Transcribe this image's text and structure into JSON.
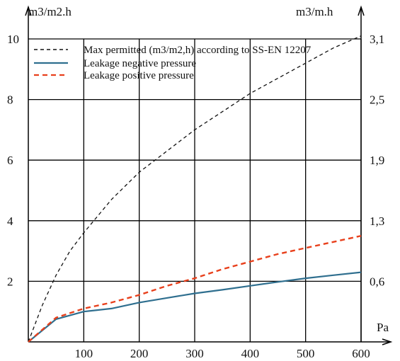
{
  "chart_data": {
    "type": "line",
    "left_axis_label": "m3/m2.h",
    "right_axis_label": "m3/m.h",
    "xlabel": "Pa",
    "x_ticks": [
      100,
      200,
      300,
      400,
      500,
      600
    ],
    "x_tick_labels": [
      "100",
      "200",
      "300",
      "400",
      "500",
      "600"
    ],
    "xlim": [
      0,
      600
    ],
    "y_ticks": [
      2,
      4,
      6,
      8,
      10
    ],
    "y_tick_labels": [
      "2",
      "4",
      "6",
      "8",
      "10"
    ],
    "ylim": [
      0,
      10
    ],
    "right_y_ticks": [
      0.6,
      1.3,
      1.9,
      2.5,
      3.1
    ],
    "right_y_tick_labels": [
      "0,6",
      "1,3",
      "1,9",
      "2,5",
      "3,1"
    ],
    "grid": true,
    "legend_position": "top-left",
    "series": [
      {
        "name": "Max permitted (m3/m2,h) according to SS-EN 12207",
        "style": "dashed",
        "color": "#111111",
        "points": [
          [
            0,
            0
          ],
          [
            25,
            1.2
          ],
          [
            50,
            2.2
          ],
          [
            75,
            3.0
          ],
          [
            100,
            3.6
          ],
          [
            150,
            4.7
          ],
          [
            200,
            5.6
          ],
          [
            250,
            6.3
          ],
          [
            300,
            7.0
          ],
          [
            350,
            7.6
          ],
          [
            400,
            8.2
          ],
          [
            450,
            8.7
          ],
          [
            500,
            9.2
          ],
          [
            550,
            9.7
          ],
          [
            600,
            10.1
          ]
        ]
      },
      {
        "name": "Leakage negative pressure",
        "style": "solid",
        "color": "#2f6f8f",
        "points": [
          [
            0,
            0
          ],
          [
            50,
            0.75
          ],
          [
            100,
            1.0
          ],
          [
            150,
            1.1
          ],
          [
            200,
            1.3
          ],
          [
            250,
            1.45
          ],
          [
            300,
            1.6
          ],
          [
            350,
            1.72
          ],
          [
            400,
            1.85
          ],
          [
            450,
            1.98
          ],
          [
            500,
            2.1
          ],
          [
            550,
            2.2
          ],
          [
            600,
            2.3
          ]
        ]
      },
      {
        "name": "Leakage positive pressure",
        "style": "dashed",
        "color": "#e8401c",
        "points": [
          [
            0,
            0
          ],
          [
            50,
            0.8
          ],
          [
            100,
            1.1
          ],
          [
            150,
            1.3
          ],
          [
            200,
            1.55
          ],
          [
            250,
            1.85
          ],
          [
            300,
            2.1
          ],
          [
            350,
            2.4
          ],
          [
            400,
            2.65
          ],
          [
            450,
            2.9
          ],
          [
            500,
            3.1
          ],
          [
            550,
            3.3
          ],
          [
            600,
            3.5
          ]
        ]
      }
    ]
  }
}
